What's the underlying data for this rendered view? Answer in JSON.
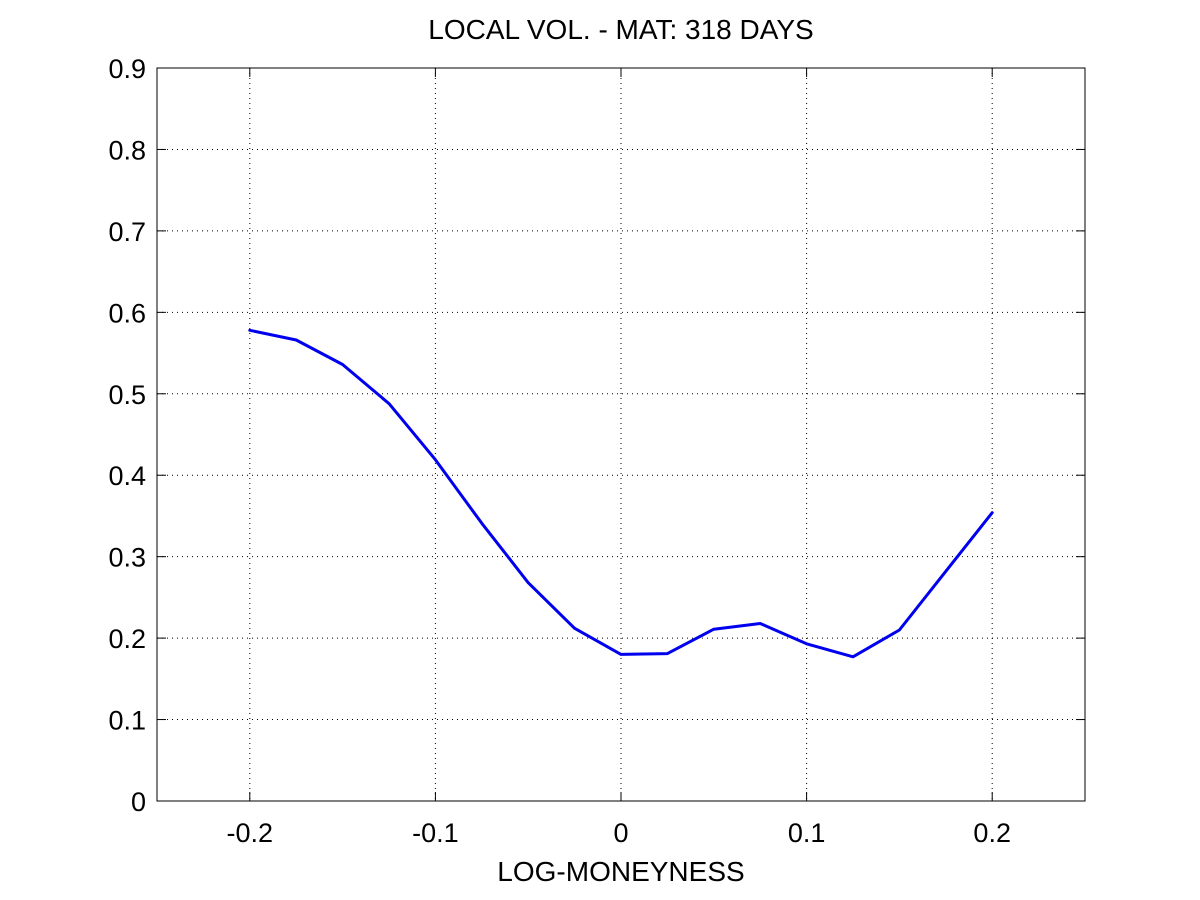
{
  "chart_data": {
    "type": "line",
    "title": "LOCAL VOL. - MAT: 318 DAYS",
    "xlabel": "LOG-MONEYNESS",
    "ylabel": "",
    "xlim": [
      -0.25,
      0.25
    ],
    "ylim": [
      0,
      0.9
    ],
    "grid": true,
    "x_ticks": [
      "-0.2",
      "-0.1",
      "0",
      "0.1",
      "0.2"
    ],
    "y_ticks": [
      "0",
      "0.1",
      "0.2",
      "0.3",
      "0.4",
      "0.5",
      "0.6",
      "0.7",
      "0.8",
      "0.9"
    ],
    "series": [
      {
        "color": "#0000ee",
        "x": [
          -0.2,
          -0.175,
          -0.15,
          -0.125,
          -0.1,
          -0.075,
          -0.05,
          -0.025,
          0,
          0.025,
          0.05,
          0.075,
          0.1,
          0.125,
          0.15,
          0.175,
          0.2
        ],
        "y": [
          0.578,
          0.566,
          0.536,
          0.488,
          0.419,
          0.341,
          0.268,
          0.212,
          0.18,
          0.181,
          0.211,
          0.218,
          0.193,
          0.177,
          0.21,
          0.282,
          0.354
        ]
      }
    ]
  }
}
